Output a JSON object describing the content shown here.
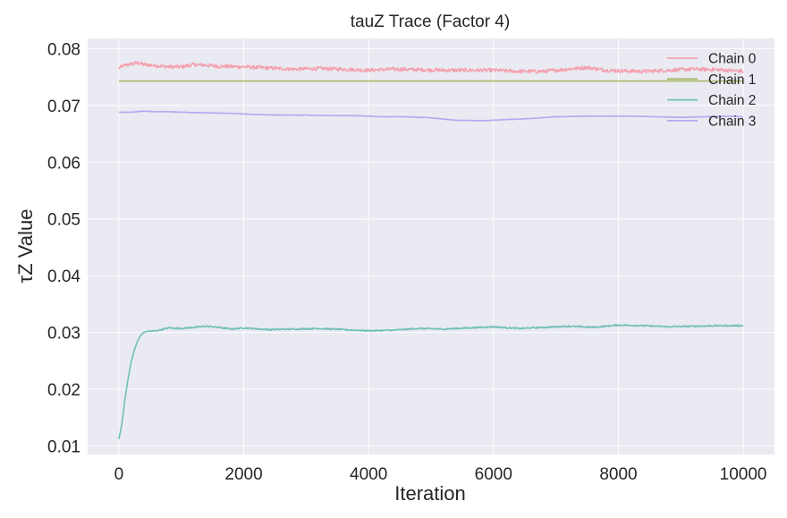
{
  "chart_data": {
    "type": "line",
    "title": "tauZ Trace (Factor 4)",
    "xlabel": "Iteration",
    "ylabel": "τZ Value",
    "xlim": [
      -500,
      10500
    ],
    "ylim": [
      0.0085,
      0.0818
    ],
    "xticks": [
      0,
      2000,
      4000,
      6000,
      8000,
      10000
    ],
    "yticks": [
      0.01,
      0.02,
      0.03,
      0.04,
      0.05,
      0.06,
      0.07,
      0.08
    ],
    "xtick_labels": [
      "0",
      "2000",
      "4000",
      "6000",
      "8000",
      "10000"
    ],
    "ytick_labels": [
      "0.01",
      "0.02",
      "0.03",
      "0.04",
      "0.05",
      "0.06",
      "0.07",
      "0.08"
    ],
    "grid": true,
    "legend_position": "top-right",
    "series": [
      {
        "name": "Chain 0",
        "color": "#f4a0ae",
        "x": [
          0,
          100,
          200,
          300,
          400,
          600,
          800,
          1000,
          1200,
          1400,
          1600,
          2000,
          2400,
          2800,
          3200,
          3600,
          4000,
          4400,
          4800,
          5200,
          5600,
          6000,
          6400,
          6800,
          7200,
          7500,
          7800,
          8000,
          8400,
          8800,
          9200,
          9600,
          10000
        ],
        "y": [
          0.0766,
          0.0771,
          0.0773,
          0.0775,
          0.0772,
          0.077,
          0.0768,
          0.0768,
          0.0772,
          0.0771,
          0.0769,
          0.0768,
          0.0766,
          0.0764,
          0.0765,
          0.0764,
          0.0762,
          0.0764,
          0.0763,
          0.0762,
          0.0762,
          0.0762,
          0.076,
          0.076,
          0.0764,
          0.0767,
          0.0762,
          0.0761,
          0.076,
          0.0762,
          0.0764,
          0.0763,
          0.076
        ]
      },
      {
        "name": "Chain 1",
        "color": "#a8b96a",
        "x": [
          0,
          10000
        ],
        "y": [
          0.0743,
          0.0743
        ]
      },
      {
        "name": "Chain 2",
        "color": "#6fc0b6",
        "x": [
          0,
          50,
          100,
          150,
          200,
          250,
          300,
          350,
          400,
          450,
          500,
          600,
          800,
          1000,
          1200,
          1400,
          1600,
          1800,
          2000,
          2400,
          2800,
          3200,
          3600,
          4000,
          4400,
          4800,
          5200,
          5600,
          6000,
          6400,
          6800,
          7200,
          7600,
          8000,
          8400,
          8800,
          9200,
          9600,
          10000
        ],
        "y": [
          0.0112,
          0.014,
          0.0185,
          0.022,
          0.025,
          0.027,
          0.0285,
          0.0295,
          0.03,
          0.0302,
          0.0302,
          0.0303,
          0.0308,
          0.0307,
          0.0309,
          0.0311,
          0.0309,
          0.0306,
          0.0308,
          0.0305,
          0.0306,
          0.0307,
          0.0305,
          0.0303,
          0.0304,
          0.0307,
          0.0306,
          0.0308,
          0.031,
          0.0307,
          0.0309,
          0.0311,
          0.0309,
          0.0313,
          0.0312,
          0.031,
          0.0311,
          0.0312,
          0.0312
        ]
      },
      {
        "name": "Chain 3",
        "color": "#b3aaf0",
        "x": [
          0,
          200,
          400,
          600,
          800,
          1000,
          1400,
          1800,
          2200,
          2600,
          3000,
          3400,
          3800,
          4200,
          4600,
          5000,
          5400,
          5800,
          6200,
          6600,
          7000,
          7400,
          7800,
          8200,
          8600,
          9000,
          9400,
          9800,
          10000
        ],
        "y": [
          0.0688,
          0.0688,
          0.069,
          0.0689,
          0.0689,
          0.0688,
          0.0687,
          0.0686,
          0.0684,
          0.0683,
          0.0683,
          0.0682,
          0.0682,
          0.068,
          0.068,
          0.0678,
          0.0674,
          0.0673,
          0.0675,
          0.0677,
          0.068,
          0.0681,
          0.0681,
          0.0681,
          0.068,
          0.0679,
          0.068,
          0.0681,
          0.068
        ]
      }
    ]
  }
}
